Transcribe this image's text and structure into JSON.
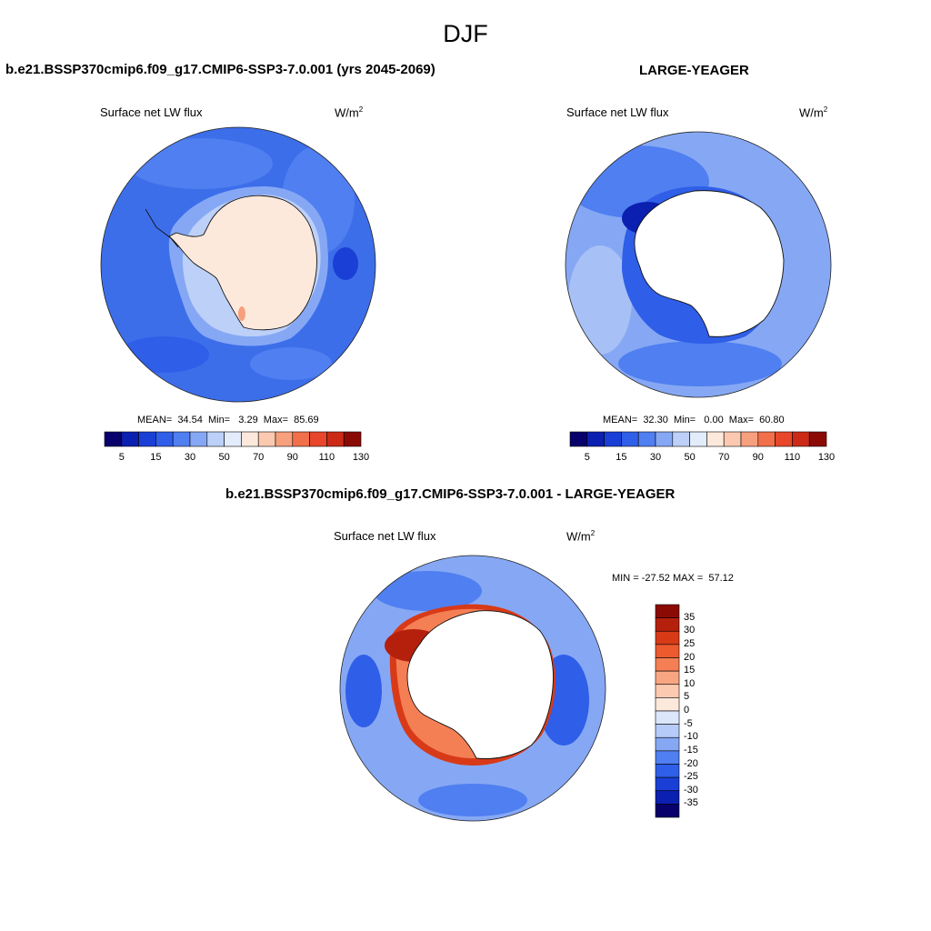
{
  "title": "DJF",
  "panels": {
    "model": {
      "title": "b.e21.BSSP370cmip6.f09_g17.CMIP6-SSP3-7.0.001 (yrs 2045-2069)",
      "variable": "Surface net LW flux",
      "units_base": "W/m",
      "units_exp": "2",
      "stats": "MEAN=  34.54  Min=   3.29  Max=  85.69",
      "mean": 34.54,
      "min": 3.29,
      "max": 85.69
    },
    "obs": {
      "title": "LARGE-YEAGER",
      "variable": "Surface net LW flux",
      "units_base": "W/m",
      "units_exp": "2",
      "stats": "MEAN=  32.30  Min=   0.00  Max=  60.80",
      "mean": 32.3,
      "min": 0.0,
      "max": 60.8
    },
    "diff": {
      "title": "b.e21.BSSP370cmip6.f09_g17.CMIP6-SSP3-7.0.001 - LARGE-YEAGER",
      "variable": "Surface net LW flux",
      "units_base": "W/m",
      "units_exp": "2",
      "stats": "MIN = -27.52 MAX =  57.12",
      "min": -27.52,
      "max": 57.12
    }
  },
  "colorbar_abs": {
    "labels": [
      "5",
      "15",
      "30",
      "50",
      "70",
      "90",
      "110",
      "130"
    ],
    "colors": [
      "#08006b",
      "#0b1fb0",
      "#1a3fd6",
      "#2f5ee8",
      "#4f7ff0",
      "#86a8f4",
      "#bcd0f8",
      "#e3ecfb",
      "#fde9dc",
      "#fbc9b0",
      "#f7a07e",
      "#f26f4b",
      "#e8472b",
      "#cc2a16",
      "#8c0a06"
    ]
  },
  "colorbar_diff": {
    "labels": [
      "35",
      "30",
      "25",
      "20",
      "15",
      "10",
      "5",
      "0",
      "-5",
      "-10",
      "-15",
      "-20",
      "-25",
      "-30",
      "-35"
    ],
    "colors": [
      "#8c0a06",
      "#b5200c",
      "#d83a18",
      "#ec5a2e",
      "#f47f55",
      "#f8a682",
      "#fbc9b0",
      "#fde9dc",
      "#dbe6fb",
      "#b6cbf8",
      "#86a8f4",
      "#4f7ff0",
      "#2f5ee8",
      "#1a3fd6",
      "#0b1fb0",
      "#08006b"
    ]
  }
}
